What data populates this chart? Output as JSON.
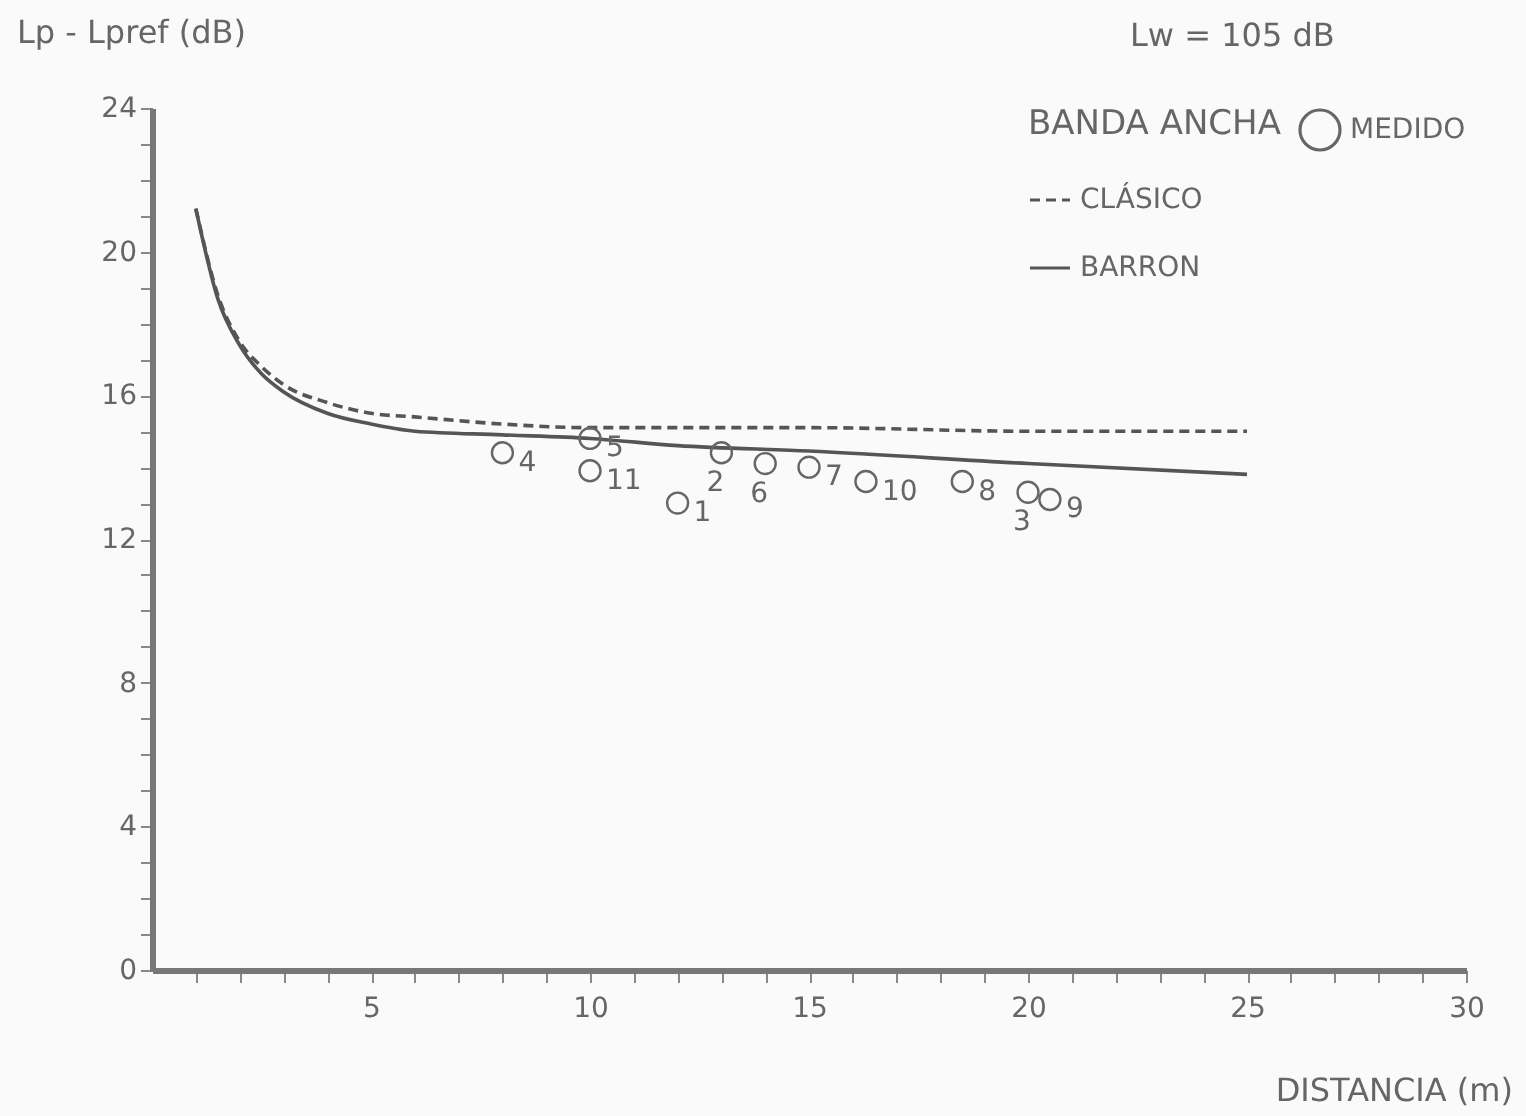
{
  "chart_data": {
    "type": "line",
    "title": "Lw = 105 dB",
    "legend_title": "BANDA ANCHA",
    "xlabel": "DISTANCIA (m)",
    "ylabel": "Lp - Lpref (dB)",
    "xlim": [
      0,
      30
    ],
    "ylim": [
      0,
      24
    ],
    "xticks": [
      {
        "value": 1,
        "label": null
      },
      {
        "value": 2,
        "label": null
      },
      {
        "value": 3,
        "label": null
      },
      {
        "value": 4,
        "label": null
      },
      5,
      {
        "value": 6,
        "label": null
      },
      {
        "value": 7,
        "label": null
      },
      {
        "value": 8,
        "label": null
      },
      {
        "value": 9,
        "label": null
      },
      10,
      {
        "value": 11,
        "label": null
      },
      {
        "value": 12,
        "label": null
      },
      {
        "value": 13,
        "label": null
      },
      {
        "value": 14,
        "label": null
      },
      15,
      {
        "value": 16,
        "label": null
      },
      {
        "value": 17,
        "label": null
      },
      {
        "value": 18,
        "label": null
      },
      {
        "value": 19,
        "label": null
      },
      20,
      {
        "value": 21,
        "label": null
      },
      {
        "value": 22,
        "label": null
      },
      {
        "value": 23,
        "label": null
      },
      {
        "value": 24,
        "label": null
      },
      25,
      {
        "value": 26,
        "label": null
      },
      {
        "value": 27,
        "label": null
      },
      {
        "value": 28,
        "label": null
      },
      {
        "value": 29,
        "label": null
      },
      30
    ],
    "yticks": [
      0,
      {
        "value": 1,
        "label": null
      },
      {
        "value": 2,
        "label": null
      },
      {
        "value": 3,
        "label": null
      },
      4,
      {
        "value": 5,
        "label": null
      },
      {
        "value": 6,
        "label": null
      },
      {
        "value": 7,
        "label": null
      },
      8,
      {
        "value": 9,
        "label": null
      },
      {
        "value": 10,
        "label": null
      },
      {
        "value": 11,
        "label": null
      },
      12,
      {
        "value": 13,
        "label": null
      },
      {
        "value": 14,
        "label": null
      },
      {
        "value": 15,
        "label": null
      },
      16,
      {
        "value": 17,
        "label": null
      },
      {
        "value": 18,
        "label": null
      },
      {
        "value": 19,
        "label": null
      },
      20,
      {
        "value": 21,
        "label": null
      },
      {
        "value": 22,
        "label": null
      },
      {
        "value": 23,
        "label": null
      },
      24
    ],
    "grid": false,
    "legend": "top right",
    "series": [
      {
        "name": "CLÁSICO",
        "line_style": "dashed",
        "color": "#555555",
        "x": [
          1,
          1.5,
          2,
          2.5,
          3,
          4,
          5,
          6,
          8,
          10,
          15,
          20,
          25
        ],
        "values": [
          21.2,
          18.8,
          17.5,
          16.8,
          16.3,
          15.8,
          15.5,
          15.4,
          15.2,
          15.1,
          15.1,
          15.0,
          15.0
        ]
      },
      {
        "name": "BARRON",
        "line_style": "solid",
        "color": "#555555",
        "x": [
          1,
          1.5,
          2,
          2.5,
          3,
          4,
          5,
          6,
          8,
          10,
          12,
          15,
          20,
          25
        ],
        "values": [
          21.2,
          18.7,
          17.4,
          16.6,
          16.1,
          15.5,
          15.2,
          15.0,
          14.9,
          14.8,
          14.6,
          14.45,
          14.1,
          13.8
        ]
      },
      {
        "name": "MEDIDO",
        "type": "scatter",
        "marker": "circle",
        "color": "#666666",
        "x": [
          12,
          13,
          20,
          8,
          10,
          14,
          15,
          18.5,
          20.5,
          16.3,
          10
        ],
        "values": [
          13.0,
          14.4,
          13.3,
          14.4,
          14.8,
          14.1,
          14.0,
          13.6,
          13.1,
          13.6,
          13.9
        ]
      }
    ],
    "annotations": [
      {
        "text": "1",
        "x": 12,
        "y": 13.0
      },
      {
        "text": "2",
        "x": 13,
        "y": 14.4
      },
      {
        "text": "3",
        "x": 20,
        "y": 13.3
      },
      {
        "text": "4",
        "x": 8,
        "y": 14.4
      },
      {
        "text": "5",
        "x": 10,
        "y": 14.8
      },
      {
        "text": "6",
        "x": 14,
        "y": 14.1
      },
      {
        "text": "7",
        "x": 15,
        "y": 14.0
      },
      {
        "text": "8",
        "x": 18.5,
        "y": 13.6
      },
      {
        "text": "9",
        "x": 20.5,
        "y": 13.1
      },
      {
        "text": "10",
        "x": 16.3,
        "y": 13.6
      },
      {
        "text": "11",
        "x": 10,
        "y": 13.9
      }
    ]
  }
}
